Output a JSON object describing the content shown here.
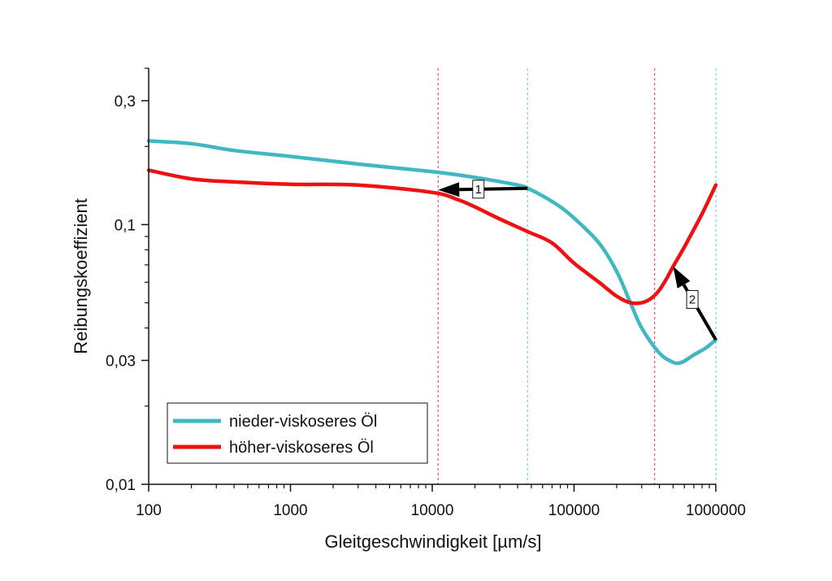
{
  "chart_data": {
    "type": "line",
    "xlabel": "Gleitgeschwindigkeit [µm/s]",
    "ylabel": "Reibungskoeffizient",
    "x_scale": "log",
    "y_scale": "log",
    "xlim": [
      100,
      1000000
    ],
    "ylim": [
      0.01,
      0.4
    ],
    "x_ticks": [
      {
        "value": 100,
        "label": "100"
      },
      {
        "value": 1000,
        "label": "1000"
      },
      {
        "value": 10000,
        "label": "10000"
      },
      {
        "value": 100000,
        "label": "100000"
      },
      {
        "value": 1000000,
        "label": "1000000"
      }
    ],
    "y_ticks": [
      {
        "value": 0.01,
        "label": "0,01"
      },
      {
        "value": 0.03,
        "label": "0,03"
      },
      {
        "value": 0.1,
        "label": "0,1"
      },
      {
        "value": 0.3,
        "label": "0,3"
      }
    ],
    "grid": false,
    "legend_position": "bottom-left",
    "series": [
      {
        "name": "nieder-viskoseres Öl",
        "color": "#3fb8c2",
        "x": [
          100,
          200,
          400,
          1000,
          3000,
          10000,
          20000,
          40000,
          47000,
          60000,
          80000,
          100000,
          150000,
          200000,
          250000,
          300000,
          400000,
          500000,
          550000,
          600000,
          700000,
          850000,
          1000000
        ],
        "y": [
          0.21,
          0.205,
          0.193,
          0.183,
          0.171,
          0.16,
          0.152,
          0.142,
          0.138,
          0.129,
          0.117,
          0.106,
          0.085,
          0.066,
          0.05,
          0.04,
          0.032,
          0.0295,
          0.0293,
          0.0298,
          0.0315,
          0.0335,
          0.036
        ]
      },
      {
        "name": "höher-viskoseres Öl",
        "color": "#ee1111",
        "x": [
          100,
          200,
          400,
          1000,
          3000,
          10000,
          15000,
          20000,
          30000,
          47000,
          70000,
          100000,
          150000,
          200000,
          250000,
          300000,
          350000,
          400000,
          450000,
          500000,
          600000,
          800000,
          1000000
        ],
        "y": [
          0.162,
          0.15,
          0.146,
          0.143,
          0.142,
          0.133,
          0.125,
          0.117,
          0.105,
          0.094,
          0.085,
          0.071,
          0.06,
          0.053,
          0.05,
          0.05,
          0.052,
          0.056,
          0.062,
          0.069,
          0.082,
          0.11,
          0.142
        ]
      }
    ],
    "reference_lines": [
      {
        "x": 11000,
        "color": "#e05555"
      },
      {
        "x": 47000,
        "color": "#6fd3dc"
      },
      {
        "x": 370000,
        "color": "#e05555"
      },
      {
        "x": 1000000,
        "color": "#6fd3dc"
      }
    ],
    "annotations": [
      {
        "label": "1",
        "from": [
          47000,
          0.138
        ],
        "to": [
          11000,
          0.136
        ]
      },
      {
        "label": "2",
        "from": [
          1000000,
          0.036
        ],
        "to": [
          500000,
          0.069
        ]
      }
    ]
  }
}
